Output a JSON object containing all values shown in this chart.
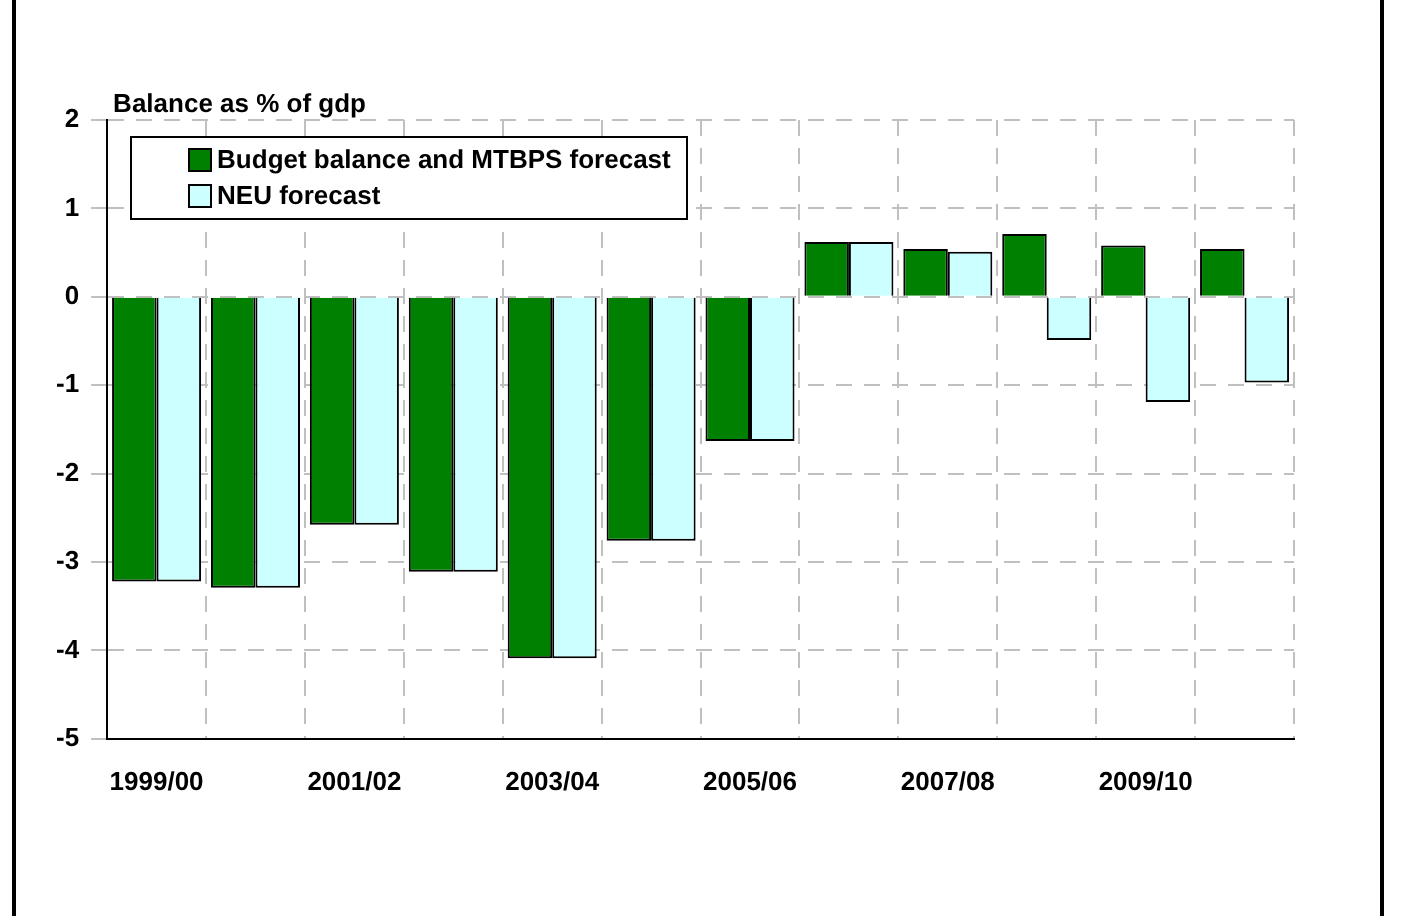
{
  "chart_data": {
    "type": "bar",
    "ylabel": "Balance as % of gdp",
    "categories": [
      "1999/00",
      null,
      "2001/02",
      null,
      "2003/04",
      null,
      "2005/06",
      null,
      "2007/08",
      null,
      "2009/10",
      null
    ],
    "series": [
      {
        "name": "Budget balance and MTBPS forecast",
        "color": "#008000",
        "values": [
          -3.22,
          -3.29,
          -2.58,
          -3.11,
          -4.09,
          -2.76,
          -1.63,
          0.62,
          0.54,
          0.71,
          0.58,
          0.54
        ]
      },
      {
        "name": "NEU forecast",
        "color": "#ccffff",
        "values": [
          -3.22,
          -3.29,
          -2.58,
          -3.11,
          -4.09,
          -2.76,
          -1.63,
          0.62,
          0.51,
          -0.49,
          -1.19,
          -0.97
        ]
      }
    ],
    "ylim": [
      -5,
      2
    ],
    "yticks": [
      -5,
      -4,
      -3,
      -2,
      -1,
      0,
      1,
      2
    ],
    "grid": true,
    "legend": "top left"
  }
}
